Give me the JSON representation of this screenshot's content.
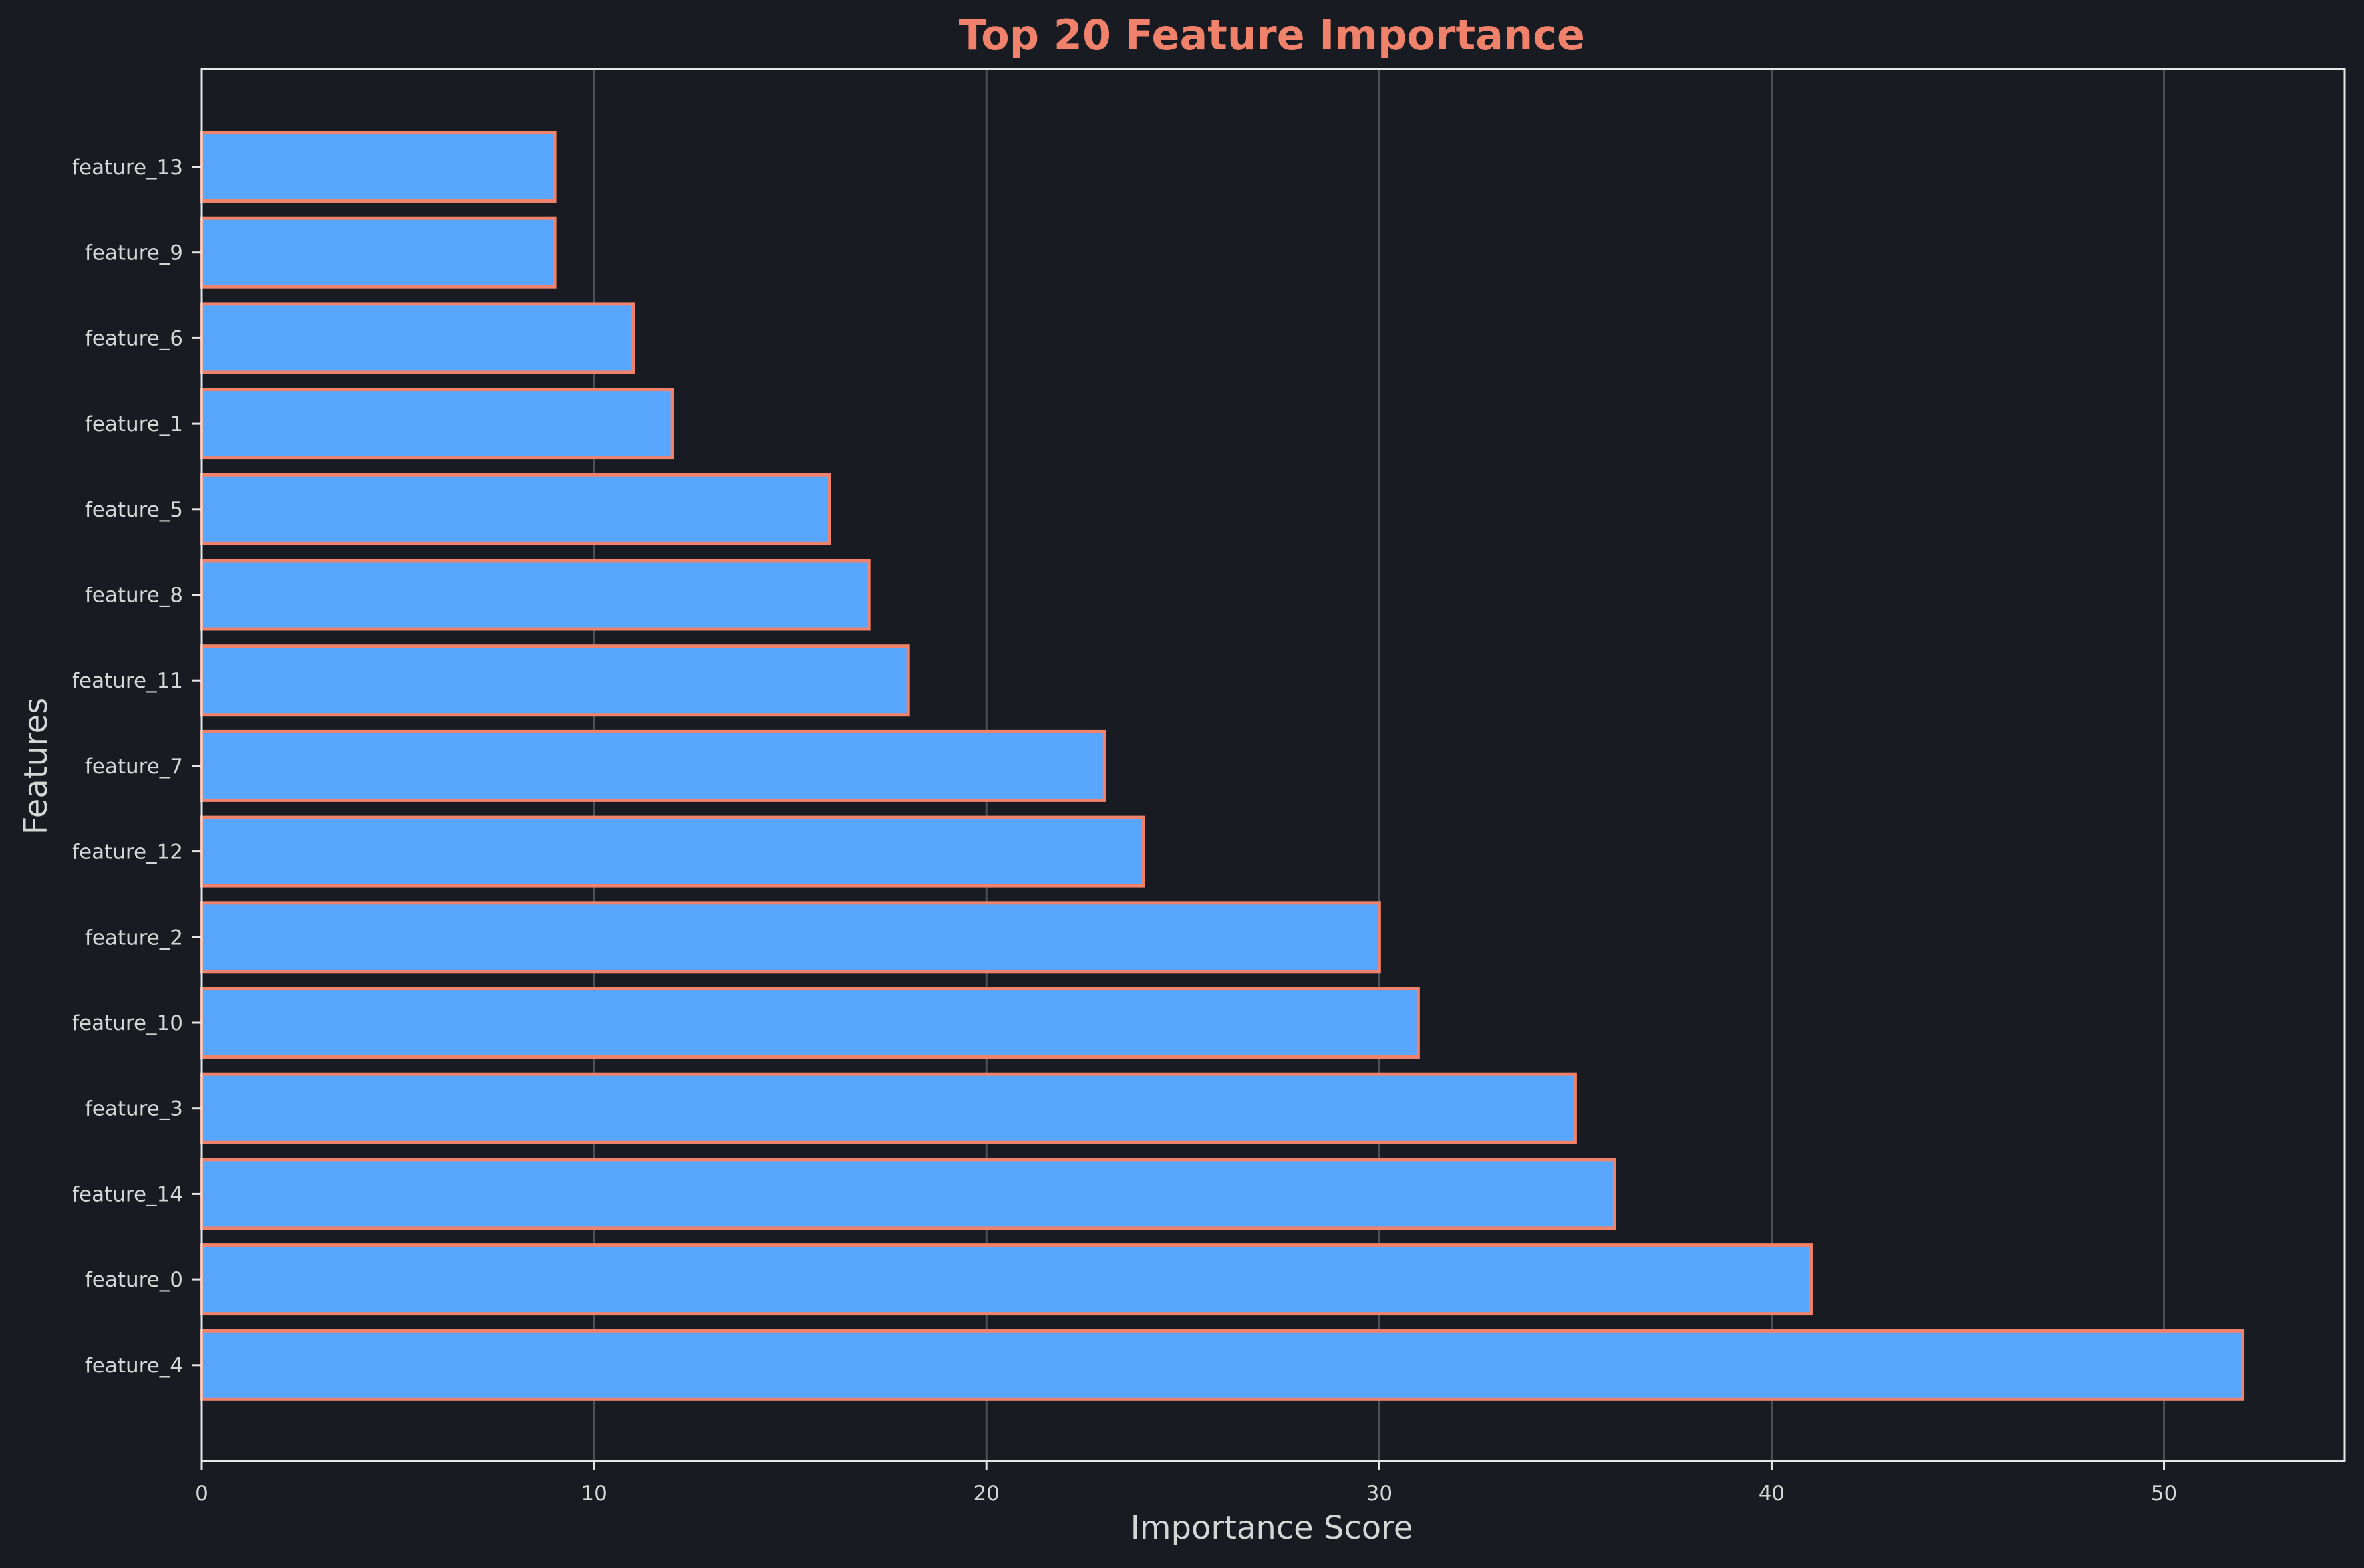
{
  "chart_data": {
    "type": "bar",
    "orientation": "horizontal",
    "title": "Top 20 Feature Importance",
    "xlabel": "Importance Score",
    "ylabel": "Features",
    "categories": [
      "feature_13",
      "feature_9",
      "feature_6",
      "feature_1",
      "feature_5",
      "feature_8",
      "feature_11",
      "feature_7",
      "feature_12",
      "feature_2",
      "feature_10",
      "feature_3",
      "feature_14",
      "feature_0",
      "feature_4"
    ],
    "values": [
      9,
      9,
      11,
      12,
      16,
      17,
      18,
      23,
      24,
      30,
      31,
      35,
      36,
      41,
      52
    ],
    "xlim": [
      0,
      54.6
    ],
    "xticks": [
      0,
      10,
      20,
      30,
      40,
      50
    ],
    "grid": "x-major",
    "colors": {
      "background": "#181b21",
      "bar_fill": "#58a6ff",
      "bar_edge": "#f0826b",
      "title": "#f0826b",
      "text": "#d6d6d6",
      "axes": "#e6e6e6",
      "grid": "#4a4f58"
    }
  }
}
